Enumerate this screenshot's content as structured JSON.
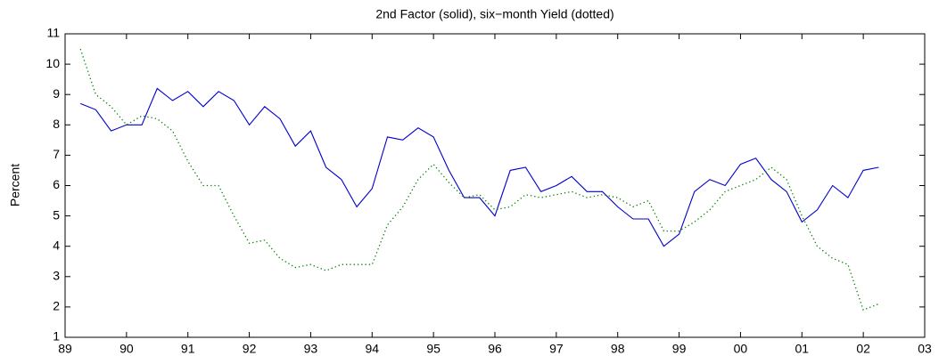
{
  "chart_data": {
    "type": "line",
    "title": "2nd Factor (solid), six−month Yield (dotted)",
    "ylabel": "Percent",
    "x": [
      1989.25,
      1989.5,
      1989.75,
      1990,
      1990.25,
      1990.5,
      1990.75,
      1991,
      1991.25,
      1991.5,
      1991.75,
      1992,
      1992.25,
      1992.5,
      1992.75,
      1993,
      1993.25,
      1993.5,
      1993.75,
      1994,
      1994.25,
      1994.5,
      1994.75,
      1995,
      1995.25,
      1995.5,
      1995.75,
      1996,
      1996.25,
      1996.5,
      1996.75,
      1997,
      1997.25,
      1997.5,
      1997.75,
      1998,
      1998.25,
      1998.5,
      1998.75,
      1999,
      1999.25,
      1999.5,
      1999.75,
      2000,
      2000.25,
      2000.5,
      2000.75,
      2001,
      2001.25,
      2001.5,
      2001.75,
      2002,
      2002.25
    ],
    "series": [
      {
        "color": "#0000cc",
        "dash": "solid",
        "values": [
          8.7,
          8.5,
          7.8,
          8.0,
          8.0,
          9.2,
          8.8,
          9.1,
          8.6,
          9.1,
          8.8,
          8.0,
          8.6,
          8.2,
          7.3,
          7.8,
          6.6,
          6.2,
          5.3,
          5.9,
          7.6,
          7.5,
          7.9,
          7.6,
          6.5,
          5.6,
          5.6,
          5.0,
          6.5,
          6.6,
          5.8,
          6.0,
          6.3,
          5.8,
          5.8,
          5.3,
          4.9,
          4.9,
          4.0,
          4.4,
          5.8,
          6.2,
          6.0,
          6.7,
          6.9,
          6.2,
          5.8,
          4.8,
          5.2,
          6.0,
          5.6,
          6.5,
          6.6
        ]
      },
      {
        "color": "#008000",
        "dash": "dotted",
        "values": [
          10.5,
          9.0,
          8.6,
          8.0,
          8.3,
          8.2,
          7.8,
          6.8,
          6.0,
          6.0,
          5.0,
          4.1,
          4.2,
          3.6,
          3.3,
          3.4,
          3.2,
          3.4,
          3.4,
          3.4,
          4.7,
          5.3,
          6.2,
          6.7,
          6.1,
          5.6,
          5.7,
          5.2,
          5.3,
          5.7,
          5.6,
          5.7,
          5.8,
          5.6,
          5.7,
          5.6,
          5.3,
          5.5,
          4.5,
          4.5,
          4.8,
          5.2,
          5.8,
          6.0,
          6.2,
          6.6,
          6.2,
          5.0,
          4.0,
          3.6,
          3.4,
          1.9,
          2.1
        ]
      }
    ],
    "xlim": [
      1989,
      2003
    ],
    "xticks": [
      {
        "value": 1989,
        "label": "89"
      },
      {
        "value": 1990,
        "label": "90"
      },
      {
        "value": 1991,
        "label": "91"
      },
      {
        "value": 1992,
        "label": "92"
      },
      {
        "value": 1993,
        "label": "93"
      },
      {
        "value": 1994,
        "label": "94"
      },
      {
        "value": 1995,
        "label": "95"
      },
      {
        "value": 1996,
        "label": "96"
      },
      {
        "value": 1997,
        "label": "97"
      },
      {
        "value": 1998,
        "label": "98"
      },
      {
        "value": 1999,
        "label": "99"
      },
      {
        "value": 2000,
        "label": "00"
      },
      {
        "value": 2001,
        "label": "01"
      },
      {
        "value": 2002,
        "label": "02"
      },
      {
        "value": 2003,
        "label": "03"
      }
    ],
    "ylim": [
      1,
      11
    ],
    "yticks": [
      1,
      2,
      3,
      4,
      5,
      6,
      7,
      8,
      9,
      10,
      11
    ],
    "grid": false
  }
}
